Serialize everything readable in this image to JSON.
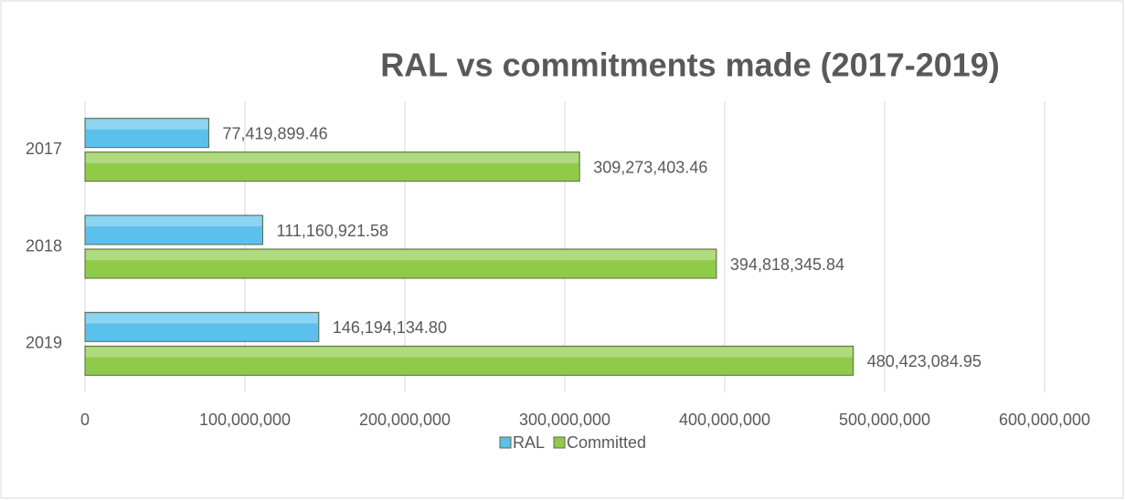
{
  "chart_data": {
    "type": "hbar",
    "title": "RAL vs commitments made (2017-2019)",
    "categories": [
      "2017",
      "2018",
      "2019"
    ],
    "series": [
      {
        "name": "RAL",
        "color": "#5cc0ec",
        "values": [
          77419899.46,
          111160921.58,
          146194134.8
        ],
        "value_labels": [
          "77,419,899.46",
          "111,160,921.58",
          "146,194,134.80"
        ]
      },
      {
        "name": "Committed",
        "color": "#8fcb48",
        "values": [
          309273403.46,
          394818345.84,
          480423084.95
        ],
        "value_labels": [
          "309,273,403.46",
          "394,818,345.84",
          "480,423,084.95"
        ]
      }
    ],
    "xlim": [
      0,
      600000000
    ],
    "xticks": [
      0,
      {
        "value": 100000000,
        "label": "100,000,000"
      },
      {
        "value": 200000000,
        "label": "200,000,000"
      },
      {
        "value": 300000000,
        "label": "300,000,000"
      },
      {
        "value": 400000000,
        "label": "400,000,000"
      },
      {
        "value": 500000000,
        "label": "500,000,000"
      },
      {
        "value": 600000000,
        "label": "600,000,000"
      }
    ],
    "grid": true,
    "legend": "bottom"
  }
}
